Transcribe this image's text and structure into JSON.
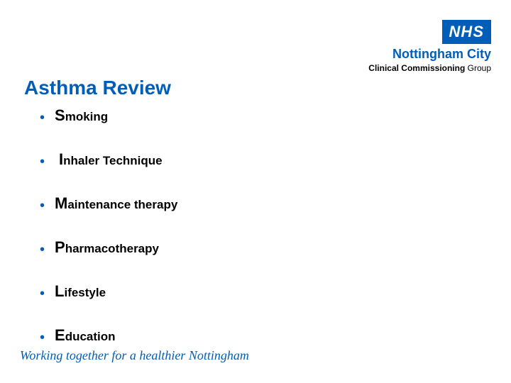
{
  "logo": {
    "nhs": "NHS",
    "city": "Nottingham City",
    "ccg_bold": "Clinical Commissioning",
    "ccg_rest": " Group"
  },
  "title": "Asthma Review",
  "items": [
    {
      "lead": "S",
      "rest": "moking"
    },
    {
      "lead": "I",
      "rest": "nhaler Technique"
    },
    {
      "lead": "M",
      "rest": "aintenance therapy"
    },
    {
      "lead": "P",
      "rest": "harmacotherapy"
    },
    {
      "lead": "L",
      "rest": "ifestyle"
    },
    {
      "lead": "E",
      "rest": "ducation"
    }
  ],
  "tagline": "Working together for a healthier Nottingham",
  "colors": {
    "brand": "#005eb8",
    "text": "#000000",
    "bg": "#ffffff"
  }
}
